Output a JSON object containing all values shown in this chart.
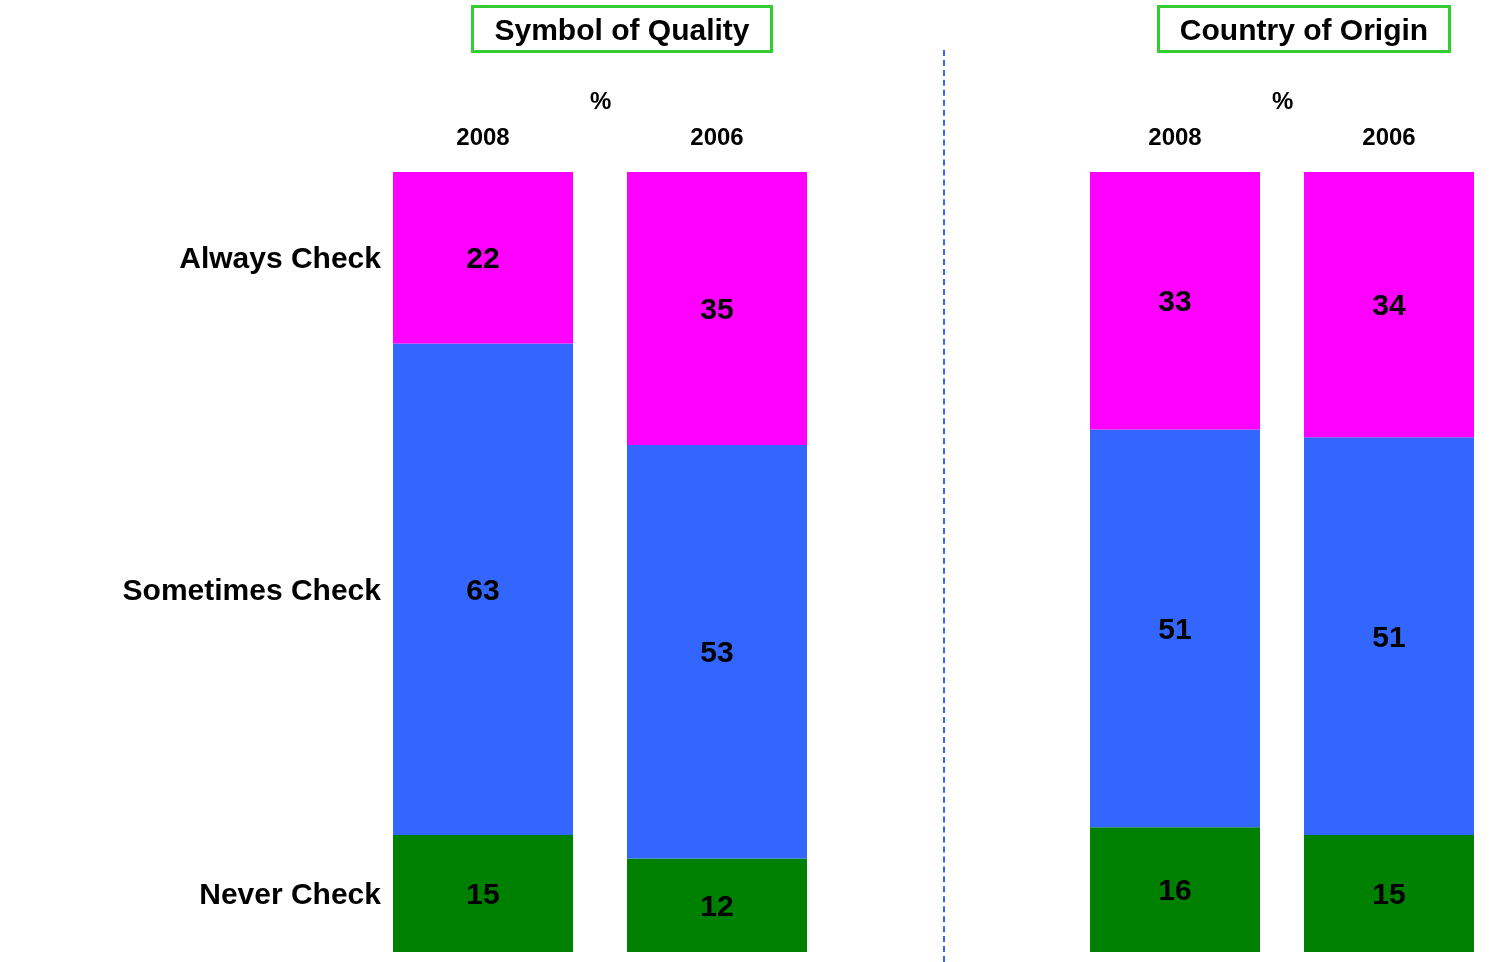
{
  "chart_data": [
    {
      "type": "bar",
      "title": "Symbol of Quality",
      "categories": [
        "2008",
        "2006"
      ],
      "stacked": true,
      "data_labels": true,
      "legend": "left",
      "grid": false,
      "annotations": [
        "%"
      ],
      "series": [
        {
          "name": "Never Check",
          "color": "#008000",
          "values": [
            15,
            12
          ]
        },
        {
          "name": "Sometimes Check",
          "color": "#3366ff",
          "values": [
            63,
            53
          ]
        },
        {
          "name": "Always Check",
          "color": "#ff00ff",
          "values": [
            22,
            35
          ]
        }
      ]
    },
    {
      "type": "bar",
      "title": "Country of Origin",
      "categories": [
        "2008",
        "2006"
      ],
      "stacked": true,
      "data_labels": true,
      "grid": false,
      "annotations": [
        "%"
      ],
      "series": [
        {
          "color": "#008000",
          "values": [
            16,
            15
          ]
        },
        {
          "color": "#3366ff",
          "values": [
            51,
            51
          ]
        },
        {
          "color": "#ff00ff",
          "values": [
            33,
            34
          ]
        }
      ]
    }
  ]
}
